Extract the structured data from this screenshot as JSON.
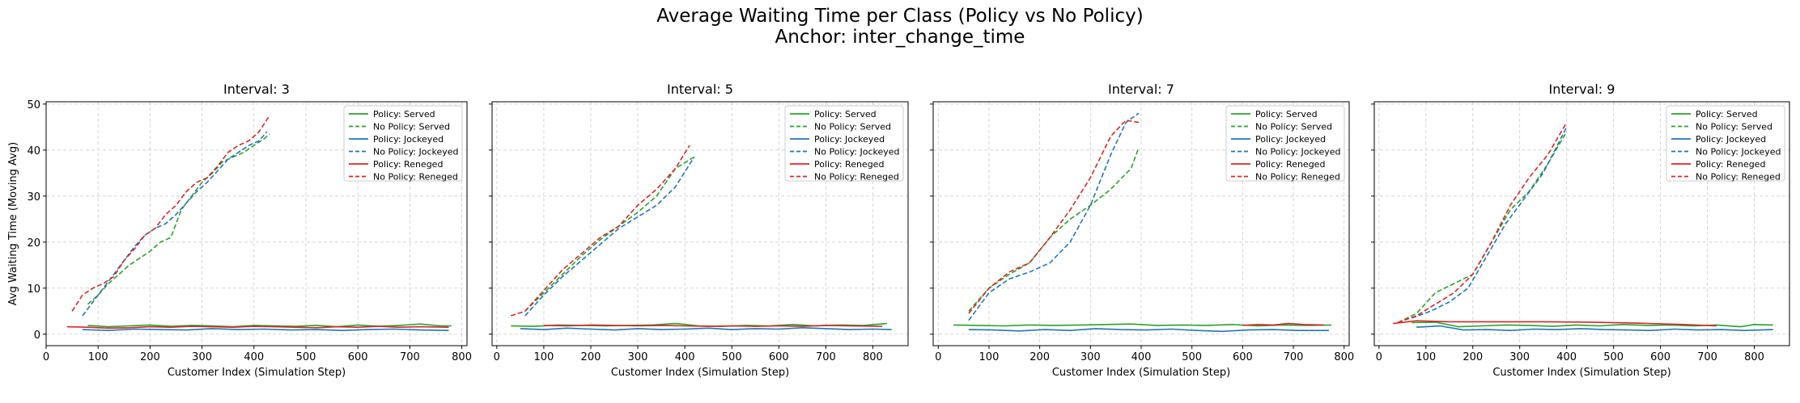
{
  "figure": {
    "title_line1": "Average Waiting Time per Class (Policy vs No Policy)",
    "title_line2": "Anchor: inter_change_time"
  },
  "chart_data": [
    {
      "type": "line",
      "title": "Interval: 3",
      "xlabel": "Customer Index (Simulation Step)",
      "ylabel": "Avg Waiting Time (Moving Avg)",
      "xlim": [
        0,
        810
      ],
      "ylim": [
        -2.5,
        50.5
      ],
      "xticks": [
        0,
        100,
        200,
        300,
        400,
        500,
        600,
        700,
        800
      ],
      "yticks": [
        0,
        10,
        20,
        30,
        40,
        50
      ],
      "grid": true,
      "legend_position": "top-right",
      "series": [
        {
          "name": "Policy: Served",
          "color": "#2ca02c",
          "dash": "solid",
          "x": [
            80,
            120,
            160,
            200,
            240,
            280,
            320,
            360,
            400,
            440,
            480,
            520,
            560,
            600,
            640,
            680,
            720,
            760,
            780
          ],
          "y": [
            1.9,
            1.6,
            1.8,
            2.0,
            1.7,
            1.9,
            1.8,
            1.6,
            1.9,
            1.8,
            1.7,
            1.9,
            1.6,
            2.0,
            1.7,
            1.9,
            2.2,
            1.8,
            1.8
          ]
        },
        {
          "name": "No Policy: Served",
          "color": "#2ca02c",
          "dash": "dashed",
          "x": [
            80,
            100,
            120,
            140,
            160,
            180,
            200,
            220,
            240,
            260,
            280,
            300,
            320,
            340,
            360,
            380,
            400,
            420,
            430
          ],
          "y": [
            6.5,
            8.5,
            11,
            13,
            15,
            16.5,
            18,
            20,
            21,
            27,
            30,
            33,
            35,
            37.5,
            38.5,
            39.5,
            41,
            42.5,
            43.5
          ]
        },
        {
          "name": "Policy: Jockeyed",
          "color": "#1f77b4",
          "dash": "solid",
          "x": [
            70,
            120,
            170,
            220,
            270,
            320,
            370,
            420,
            470,
            520,
            570,
            620,
            670,
            720,
            775
          ],
          "y": [
            1.0,
            0.8,
            1.1,
            1.0,
            0.9,
            1.2,
            1.0,
            1.1,
            0.9,
            1.0,
            0.8,
            1.0,
            1.1,
            0.9,
            0.8
          ]
        },
        {
          "name": "No Policy: Jockeyed",
          "color": "#1f77b4",
          "dash": "dashed",
          "x": [
            70,
            90,
            110,
            130,
            150,
            170,
            190,
            210,
            230,
            250,
            270,
            290,
            310,
            330,
            350,
            370,
            390,
            410,
            425
          ],
          "y": [
            4,
            7,
            10,
            13,
            16,
            19,
            21.5,
            23,
            24,
            26,
            28.5,
            31,
            33,
            35.5,
            38,
            39.5,
            41,
            42,
            44
          ]
        },
        {
          "name": "Policy: Reneged",
          "color": "#d62728",
          "dash": "solid",
          "x": [
            40,
            80,
            120,
            160,
            200,
            240,
            280,
            320,
            360,
            400,
            440,
            480,
            520,
            560,
            600,
            640,
            680,
            720,
            775
          ],
          "y": [
            1.6,
            1.5,
            1.3,
            1.4,
            1.6,
            1.5,
            1.7,
            1.6,
            1.5,
            1.7,
            1.6,
            1.5,
            1.4,
            1.6,
            1.5,
            1.7,
            1.5,
            1.6,
            1.5
          ]
        },
        {
          "name": "No Policy: Reneged",
          "color": "#d62728",
          "dash": "dashed",
          "x": [
            50,
            70,
            90,
            110,
            130,
            150,
            170,
            190,
            210,
            230,
            250,
            270,
            290,
            310,
            330,
            350,
            370,
            390,
            410,
            430
          ],
          "y": [
            5,
            8.5,
            10,
            11,
            12.5,
            16,
            18.5,
            21.5,
            23,
            26,
            28,
            31,
            33,
            34,
            36.5,
            39.5,
            41,
            42,
            44,
            47.5
          ]
        }
      ]
    },
    {
      "type": "line",
      "title": "Interval: 5",
      "xlabel": "Customer Index (Simulation Step)",
      "ylabel": "",
      "xlim": [
        -10,
        875
      ],
      "ylim": [
        -2.5,
        50.5
      ],
      "xticks": [
        0,
        100,
        200,
        300,
        400,
        500,
        600,
        700,
        800
      ],
      "yticks": [
        0,
        10,
        20,
        30,
        40,
        50
      ],
      "grid": true,
      "legend_position": "top-right",
      "series": [
        {
          "name": "Policy: Served",
          "color": "#2ca02c",
          "dash": "solid",
          "x": [
            30,
            80,
            130,
            180,
            230,
            280,
            330,
            380,
            430,
            480,
            530,
            580,
            630,
            680,
            730,
            780,
            830
          ],
          "y": [
            1.8,
            1.7,
            2.0,
            1.9,
            1.8,
            1.9,
            2.0,
            2.3,
            1.8,
            1.7,
            1.9,
            1.8,
            2.1,
            1.8,
            2.0,
            1.9,
            2.3
          ]
        },
        {
          "name": "No Policy: Served",
          "color": "#2ca02c",
          "dash": "dashed",
          "x": [
            60,
            100,
            140,
            180,
            220,
            260,
            300,
            340,
            380,
            420
          ],
          "y": [
            5,
            9,
            13,
            17,
            20.5,
            23.5,
            26.5,
            30,
            36,
            38.5
          ]
        },
        {
          "name": "Policy: Jockeyed",
          "color": "#1f77b4",
          "dash": "solid",
          "x": [
            50,
            100,
            150,
            200,
            250,
            300,
            350,
            400,
            450,
            500,
            550,
            600,
            650,
            700,
            750,
            800,
            840
          ],
          "y": [
            1.2,
            1.0,
            1.3,
            1.1,
            0.9,
            1.2,
            1.0,
            1.1,
            1.3,
            1.0,
            1.2,
            1.1,
            1.4,
            1.2,
            1.0,
            1.1,
            1.0
          ]
        },
        {
          "name": "No Policy: Jockeyed",
          "color": "#1f77b4",
          "dash": "dashed",
          "x": [
            60,
            100,
            140,
            180,
            220,
            260,
            300,
            340,
            380,
            420
          ],
          "y": [
            4,
            8.5,
            12.5,
            16,
            19.5,
            23,
            25.5,
            28,
            32,
            38.5
          ]
        },
        {
          "name": "Policy: Reneged",
          "color": "#d62728",
          "dash": "solid",
          "x": [
            100,
            150,
            200,
            250,
            300,
            350,
            400,
            450,
            500,
            550,
            600,
            650,
            700,
            750,
            820
          ],
          "y": [
            1.9,
            1.8,
            2.0,
            1.9,
            1.8,
            1.9,
            1.8,
            1.7,
            1.8,
            1.7,
            1.8,
            1.7,
            1.9,
            1.8,
            1.7
          ]
        },
        {
          "name": "No Policy: Reneged",
          "color": "#d62728",
          "dash": "dashed",
          "x": [
            30,
            60,
            100,
            140,
            180,
            220,
            260,
            300,
            340,
            380,
            410
          ],
          "y": [
            4,
            5,
            9.5,
            14,
            17.5,
            21,
            23.5,
            28,
            31.5,
            36,
            41
          ]
        }
      ]
    },
    {
      "type": "line",
      "title": "Interval: 7",
      "xlabel": "Customer Index (Simulation Step)",
      "ylabel": "",
      "xlim": [
        -10,
        810
      ],
      "ylim": [
        -2.5,
        50.5
      ],
      "xticks": [
        0,
        100,
        200,
        300,
        400,
        500,
        600,
        700,
        800
      ],
      "yticks": [
        0,
        10,
        20,
        30,
        40,
        50
      ],
      "grid": true,
      "legend_position": "top-right",
      "series": [
        {
          "name": "Policy: Served",
          "color": "#2ca02c",
          "dash": "solid",
          "x": [
            30,
            80,
            130,
            180,
            230,
            280,
            330,
            380,
            430,
            480,
            530,
            580,
            630,
            680,
            730,
            775
          ],
          "y": [
            2.0,
            1.9,
            1.8,
            2.0,
            1.9,
            2.0,
            2.1,
            2.2,
            1.9,
            2.0,
            1.9,
            2.1,
            1.8,
            2.0,
            1.9,
            2.0
          ]
        },
        {
          "name": "No Policy: Served",
          "color": "#2ca02c",
          "dash": "dashed",
          "x": [
            60,
            100,
            140,
            180,
            220,
            260,
            300,
            340,
            380,
            395
          ],
          "y": [
            5,
            10,
            13,
            15.5,
            21,
            25,
            28,
            31.5,
            36,
            40.5
          ]
        },
        {
          "name": "Policy: Jockeyed",
          "color": "#1f77b4",
          "dash": "solid",
          "x": [
            60,
            110,
            160,
            210,
            260,
            310,
            360,
            410,
            460,
            510,
            560,
            610,
            660,
            710,
            770
          ],
          "y": [
            1.0,
            0.9,
            0.7,
            1.0,
            0.8,
            1.2,
            1.0,
            0.9,
            1.1,
            0.8,
            0.6,
            0.9,
            1.0,
            0.8,
            0.8
          ]
        },
        {
          "name": "No Policy: Jockeyed",
          "color": "#1f77b4",
          "dash": "dashed",
          "x": [
            60,
            100,
            140,
            180,
            220,
            260,
            300,
            340,
            370,
            395
          ],
          "y": [
            3,
            9,
            12,
            13.5,
            15.5,
            20,
            28,
            39,
            46,
            48
          ]
        },
        {
          "name": "Policy: Reneged",
          "color": "#d62728",
          "dash": "solid",
          "x": [
            600,
            630,
            660,
            690,
            720,
            760
          ],
          "y": [
            1.9,
            2.1,
            2.0,
            2.3,
            2.1,
            2.0
          ]
        },
        {
          "name": "No Policy: Reneged",
          "color": "#d62728",
          "dash": "dashed",
          "x": [
            60,
            100,
            140,
            180,
            220,
            260,
            300,
            340,
            370,
            395
          ],
          "y": [
            4.5,
            10,
            13.5,
            15.5,
            21,
            27,
            34,
            43,
            46.5,
            46
          ]
        }
      ]
    },
    {
      "type": "line",
      "title": "Interval: 9",
      "xlabel": "Customer Index (Simulation Step)",
      "ylabel": "",
      "xlim": [
        -10,
        875
      ],
      "ylim": [
        -2.5,
        50.5
      ],
      "xticks": [
        0,
        100,
        200,
        300,
        400,
        500,
        600,
        700,
        800
      ],
      "yticks": [
        0,
        10,
        20,
        30,
        40,
        50
      ],
      "grid": true,
      "legend_position": "top-right",
      "series": [
        {
          "name": "Policy: Served",
          "color": "#2ca02c",
          "dash": "solid",
          "x": [
            70,
            120,
            170,
            220,
            270,
            320,
            370,
            420,
            470,
            520,
            570,
            620,
            670,
            720,
            770,
            800,
            840
          ],
          "y": [
            2.5,
            2.6,
            1.6,
            1.8,
            2.0,
            1.9,
            1.7,
            2.0,
            1.8,
            2.1,
            1.9,
            2.0,
            1.8,
            2.0,
            1.6,
            2.1,
            2.0
          ]
        },
        {
          "name": "No Policy: Served",
          "color": "#2ca02c",
          "dash": "dashed",
          "x": [
            40,
            80,
            120,
            160,
            200,
            240,
            280,
            320,
            360,
            400
          ],
          "y": [
            2.5,
            4.5,
            9,
            11,
            13,
            20,
            27,
            31,
            37,
            44
          ]
        },
        {
          "name": "Policy: Jockeyed",
          "color": "#1f77b4",
          "dash": "solid",
          "x": [
            80,
            130,
            180,
            230,
            280,
            330,
            380,
            430,
            480,
            530,
            580,
            630,
            680,
            730,
            780,
            840
          ],
          "y": [
            1.5,
            1.8,
            0.9,
            1.0,
            0.8,
            1.1,
            1.0,
            1.2,
            1.0,
            0.9,
            0.8,
            1.1,
            0.9,
            1.0,
            0.8,
            1.0
          ]
        },
        {
          "name": "No Policy: Jockeyed",
          "color": "#1f77b4",
          "dash": "dashed",
          "x": [
            70,
            110,
            150,
            190,
            230,
            270,
            310,
            350,
            380,
            400
          ],
          "y": [
            3.5,
            5,
            7,
            10,
            17,
            24,
            29.5,
            35,
            41,
            45
          ]
        },
        {
          "name": "Policy: Reneged",
          "color": "#d62728",
          "dash": "solid",
          "x": [
            30,
            80,
            150,
            250,
            350,
            450,
            550,
            650,
            720
          ],
          "y": [
            2.3,
            2.9,
            2.7,
            2.7,
            2.7,
            2.6,
            2.4,
            2.1,
            1.8
          ]
        },
        {
          "name": "No Policy: Reneged",
          "color": "#d62728",
          "dash": "dashed",
          "x": [
            40,
            80,
            120,
            160,
            200,
            240,
            280,
            320,
            360,
            400
          ],
          "y": [
            2.5,
            4,
            6.5,
            9,
            13,
            20,
            28,
            34,
            39,
            46
          ]
        }
      ]
    }
  ]
}
